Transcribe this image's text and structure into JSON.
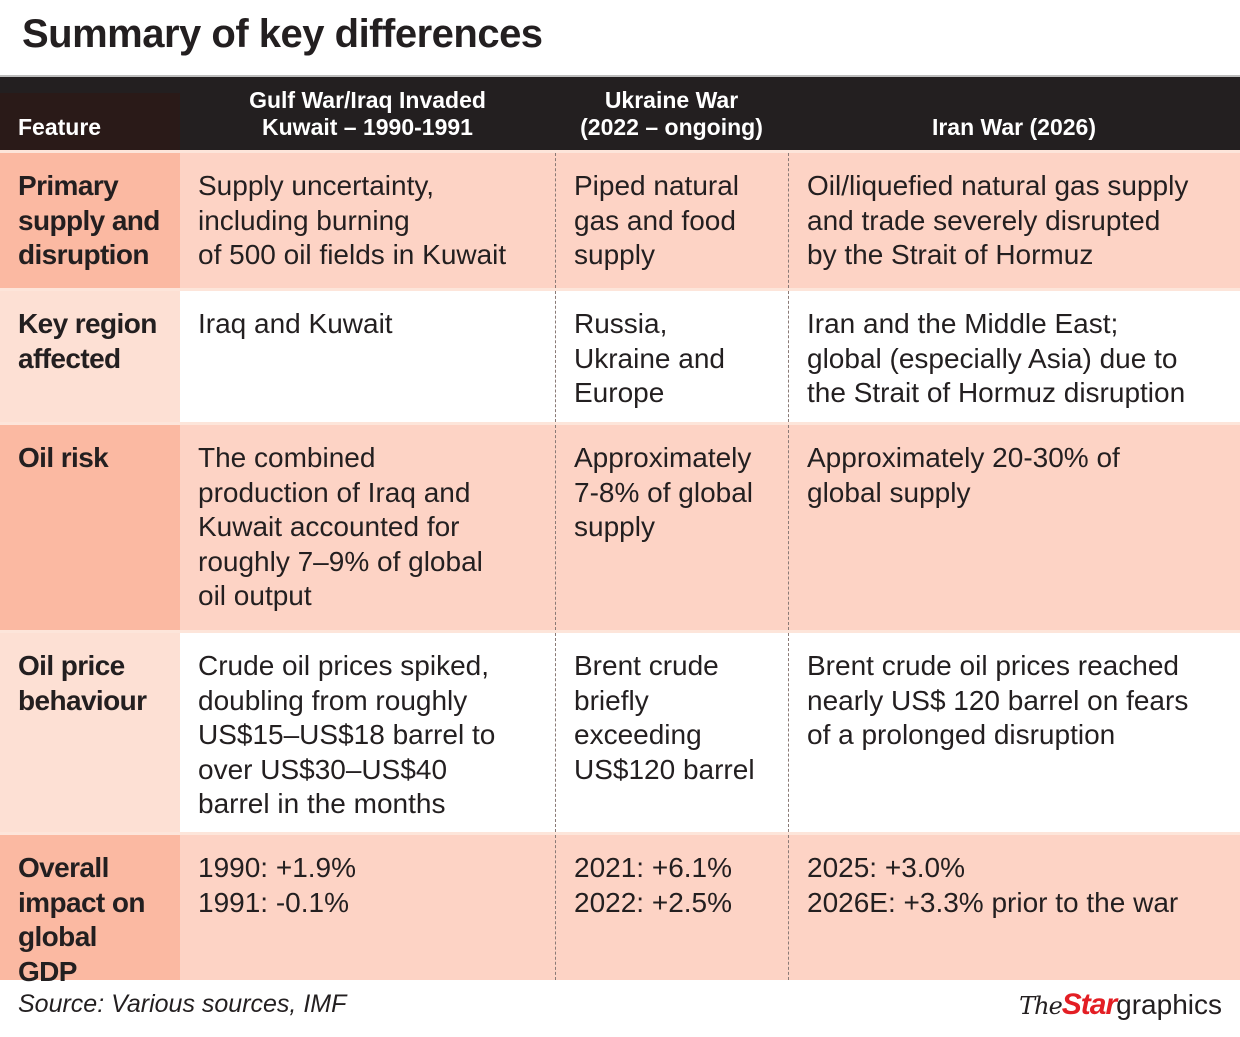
{
  "title": "Summary of key differences",
  "headers": {
    "feature": "Feature",
    "col1": [
      "Gulf War/Iraq Invaded",
      "Kuwait – 1990-1991"
    ],
    "col2": [
      "Ukraine War",
      "(2022 – ongoing)"
    ],
    "col3": [
      "Iran War (2026)"
    ]
  },
  "rows": [
    {
      "feature": [
        "Primary",
        "supply and",
        "disruption"
      ],
      "gulf": [
        "Supply uncertainty,",
        "including burning",
        "of 500 oil fields in Kuwait"
      ],
      "ukraine": [
        "Piped natural",
        "gas and food",
        "supply"
      ],
      "iran": [
        "Oil/liquefied natural gas supply",
        "and trade severely disrupted",
        "by the Strait of Hormuz"
      ]
    },
    {
      "feature": [
        "Key region",
        "affected"
      ],
      "gulf": [
        "Iraq and Kuwait"
      ],
      "ukraine": [
        "Russia,",
        "Ukraine and",
        "Europe"
      ],
      "iran": [
        "Iran and the Middle East;",
        "global (especially Asia) due to",
        "the Strait of Hormuz disruption"
      ]
    },
    {
      "feature": [
        "Oil risk"
      ],
      "gulf": [
        "The combined",
        "production of Iraq and",
        "Kuwait accounted for",
        "roughly 7–9% of global",
        "oil output"
      ],
      "ukraine": [
        "Approximately",
        "7-8% of global",
        "supply"
      ],
      "iran": [
        "Approximately 20-30% of",
        "global supply"
      ]
    },
    {
      "feature": [
        "Oil price",
        "behaviour"
      ],
      "gulf": [
        "Crude oil prices spiked,",
        "doubling from roughly",
        "US$15–US$18 barrel to",
        "over US$30–US$40",
        "barrel in the months"
      ],
      "ukraine": [
        "Brent crude",
        "briefly",
        "exceeding",
        "US$120 barrel"
      ],
      "iran": [
        "Brent crude oil prices reached",
        "nearly US$ 120 barrel on fears",
        "of a prolonged disruption"
      ]
    },
    {
      "feature": [
        "Overall",
        "impact on",
        "global GDP"
      ],
      "gulf": [
        "1990: +1.9%",
        "1991: -0.1%"
      ],
      "ukraine": [
        "2021: +6.1%",
        "2022: +2.5%"
      ],
      "iran": [
        "2025: +3.0%",
        "2026E: +3.3% prior to the war"
      ]
    }
  ],
  "footer": {
    "source": "Source: Various sources, IMF",
    "logo": {
      "the": "The",
      "star": "Star",
      "graphics": "graphics"
    }
  },
  "colors": {
    "header_bg": "#231f20",
    "shade_body": "#fdd3c5",
    "shade_feature": "#fbb9a2",
    "plain_feature": "#fde0d4",
    "brand_red": "#e31e24"
  }
}
